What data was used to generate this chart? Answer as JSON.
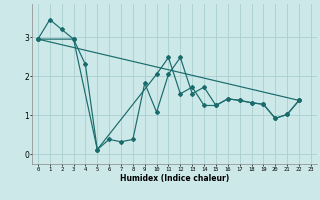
{
  "xlabel": "Humidex (Indice chaleur)",
  "background_color": "#cce8e8",
  "grid_color": "#aad0d0",
  "line_color": "#1a6b6b",
  "xlim": [
    -0.5,
    23.5
  ],
  "ylim": [
    -0.25,
    3.85
  ],
  "yticks": [
    0,
    1,
    2,
    3
  ],
  "xticks": [
    0,
    1,
    2,
    3,
    4,
    5,
    6,
    7,
    8,
    9,
    10,
    11,
    12,
    13,
    14,
    15,
    16,
    17,
    18,
    19,
    20,
    21,
    22,
    23
  ],
  "series1_x": [
    0,
    1,
    2,
    3,
    4,
    5,
    6,
    7,
    8,
    9,
    10,
    11,
    12,
    13,
    14,
    15,
    16,
    17,
    18,
    19,
    20,
    21,
    22
  ],
  "series1_y": [
    2.95,
    3.45,
    3.2,
    2.95,
    2.3,
    0.12,
    0.38,
    0.32,
    0.38,
    1.82,
    1.08,
    2.05,
    2.48,
    1.55,
    1.72,
    1.25,
    1.42,
    1.38,
    1.32,
    1.28,
    0.92,
    1.02,
    1.38
  ],
  "series2_x": [
    0,
    22
  ],
  "series2_y": [
    2.95,
    1.38
  ],
  "series3_x": [
    0,
    3,
    5,
    10,
    11,
    12,
    13,
    14,
    15,
    16,
    17,
    18,
    19,
    20,
    21,
    22
  ],
  "series3_y": [
    2.95,
    2.95,
    0.12,
    2.05,
    2.48,
    1.55,
    1.72,
    1.25,
    1.25,
    1.42,
    1.38,
    1.32,
    1.28,
    0.92,
    1.02,
    1.38
  ]
}
